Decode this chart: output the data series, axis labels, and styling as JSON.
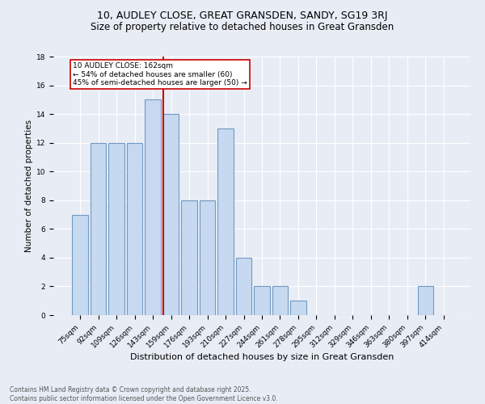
{
  "title_line1": "10, AUDLEY CLOSE, GREAT GRANSDEN, SANDY, SG19 3RJ",
  "title_line2": "Size of property relative to detached houses in Great Gransden",
  "xlabel": "Distribution of detached houses by size in Great Gransden",
  "ylabel": "Number of detached properties",
  "categories": [
    "75sqm",
    "92sqm",
    "109sqm",
    "126sqm",
    "143sqm",
    "159sqm",
    "176sqm",
    "193sqm",
    "210sqm",
    "227sqm",
    "244sqm",
    "261sqm",
    "278sqm",
    "295sqm",
    "312sqm",
    "329sqm",
    "346sqm",
    "363sqm",
    "380sqm",
    "397sqm",
    "414sqm"
  ],
  "values": [
    7,
    12,
    12,
    12,
    15,
    14,
    8,
    8,
    13,
    4,
    2,
    2,
    1,
    0,
    0,
    0,
    0,
    0,
    0,
    2,
    0
  ],
  "bar_color": "#c6d9f0",
  "bar_edge_color": "#7099c3",
  "bar_edge_width": 0.8,
  "vline_index": 5,
  "vline_color": "#cc0000",
  "annotation_text": "10 AUDLEY CLOSE: 162sqm\n← 54% of detached houses are smaller (60)\n45% of semi-detached houses are larger (50) →",
  "annotation_box_color": "#ffffff",
  "annotation_box_edge_color": "#cc0000",
  "ylim": [
    0,
    18
  ],
  "yticks": [
    0,
    2,
    4,
    6,
    8,
    10,
    12,
    14,
    16,
    18
  ],
  "background_color": "#e8edf5",
  "grid_color": "#ffffff",
  "footer_text": "Contains HM Land Registry data © Crown copyright and database right 2025.\nContains public sector information licensed under the Open Government Licence v3.0.",
  "title_fontsize": 9,
  "subtitle_fontsize": 8.5,
  "xlabel_fontsize": 8,
  "ylabel_fontsize": 7.5,
  "tick_fontsize": 6.5,
  "annotation_fontsize": 6.5,
  "footer_fontsize": 5.5
}
